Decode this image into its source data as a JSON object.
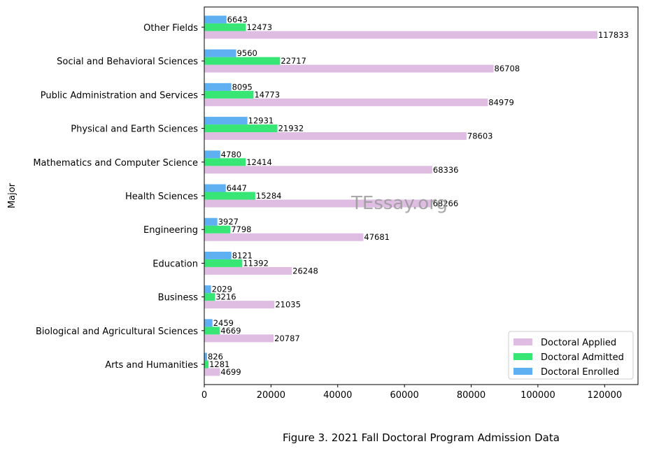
{
  "chart_data": {
    "type": "bar",
    "orientation": "horizontal",
    "categories": [
      "Arts and Humanities",
      "Biological and Agricultural Sciences",
      "Business",
      "Education",
      "Engineering",
      "Health Sciences",
      "Mathematics and Computer Science",
      "Physical and Earth Sciences",
      "Public Administration and Services",
      "Social and Behavioral Sciences",
      "Other Fields"
    ],
    "series": [
      {
        "name": "Doctoral Applied",
        "color": "#dfbde3",
        "values": [
          4699,
          20787,
          21035,
          26248,
          47681,
          68266,
          68336,
          78603,
          84979,
          86708,
          117833
        ]
      },
      {
        "name": "Doctoral Admitted",
        "color": "#37e674",
        "values": [
          1281,
          4669,
          3216,
          11392,
          7798,
          15284,
          12414,
          21932,
          14773,
          22717,
          12473
        ]
      },
      {
        "name": "Doctoral Enrolled",
        "color": "#5eb0f2",
        "values": [
          826,
          2459,
          2029,
          8121,
          3927,
          6447,
          4780,
          12931,
          8095,
          9560,
          6643
        ]
      }
    ],
    "xlim": [
      0,
      130000
    ],
    "xticks": [
      0,
      20000,
      40000,
      60000,
      80000,
      100000,
      120000
    ],
    "xlabel": "",
    "ylabel": "Major",
    "title": "Figure 3. 2021 Fall Doctoral Program Admission Data",
    "legend_position": "bottom-right",
    "grid": false,
    "watermark": "TEssay.org"
  }
}
